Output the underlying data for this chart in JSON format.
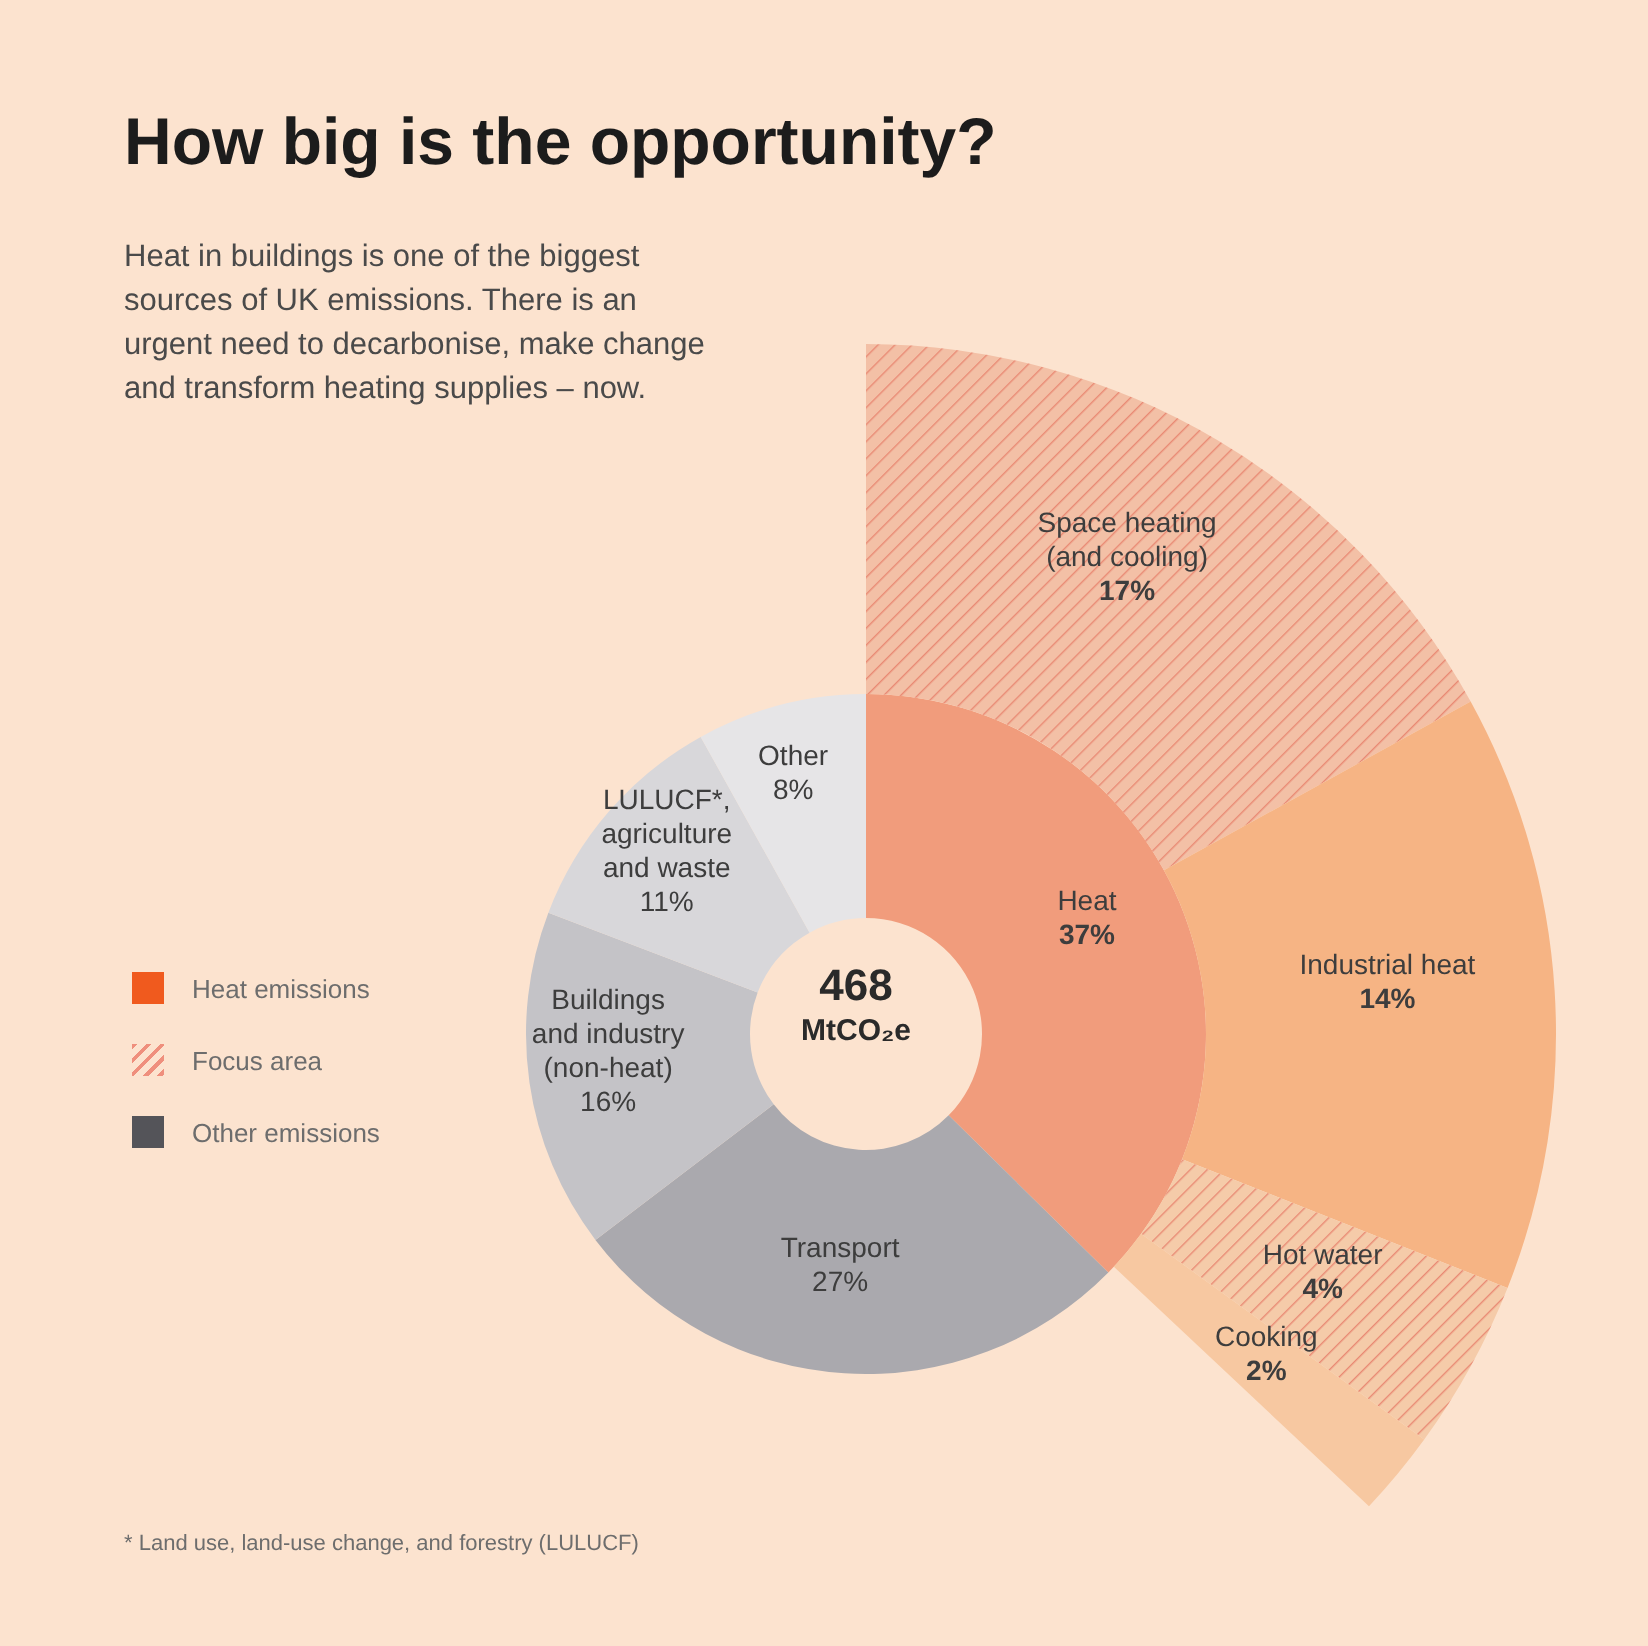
{
  "chart_data": [
    {
      "type": "donut",
      "title": "How big is the opportunity?",
      "subtitle": "Heat in buildings is one of the biggest sources of UK emissions. There is an urgent need to decarbonise, make change and transform heating supplies – now.",
      "categories": [
        "Heat",
        "Transport",
        "Buildings and industry (non-heat)",
        "LULUCF*, agriculture and waste",
        "Other"
      ],
      "values": [
        37,
        27,
        16,
        11,
        8
      ],
      "value_labels": [
        "37%",
        "27%",
        "16%",
        "11%",
        "8%"
      ],
      "colors": [
        "#f19c7c",
        "#aaa9ae",
        "#c4c3c7",
        "#d8d7da",
        "#e6e5e7"
      ],
      "annotations": [
        "468",
        "MtCO₂e",
        "Heat emissions",
        "Focus area",
        "Other emissions",
        "* Land use, land-use change, and forestry (LULUCF)"
      ]
    },
    {
      "type": "donut",
      "categories": [
        "Space heating (and cooling)",
        "Industrial heat",
        "Hot water",
        "Cooking"
      ],
      "values": [
        17,
        14,
        4,
        2
      ],
      "value_labels": [
        "17%",
        "14%",
        "4%",
        "2%"
      ],
      "colors": [
        "#f3c0a6",
        "#f6b484",
        "#f5cba9",
        "#f7c8a1"
      ]
    }
  ]
}
